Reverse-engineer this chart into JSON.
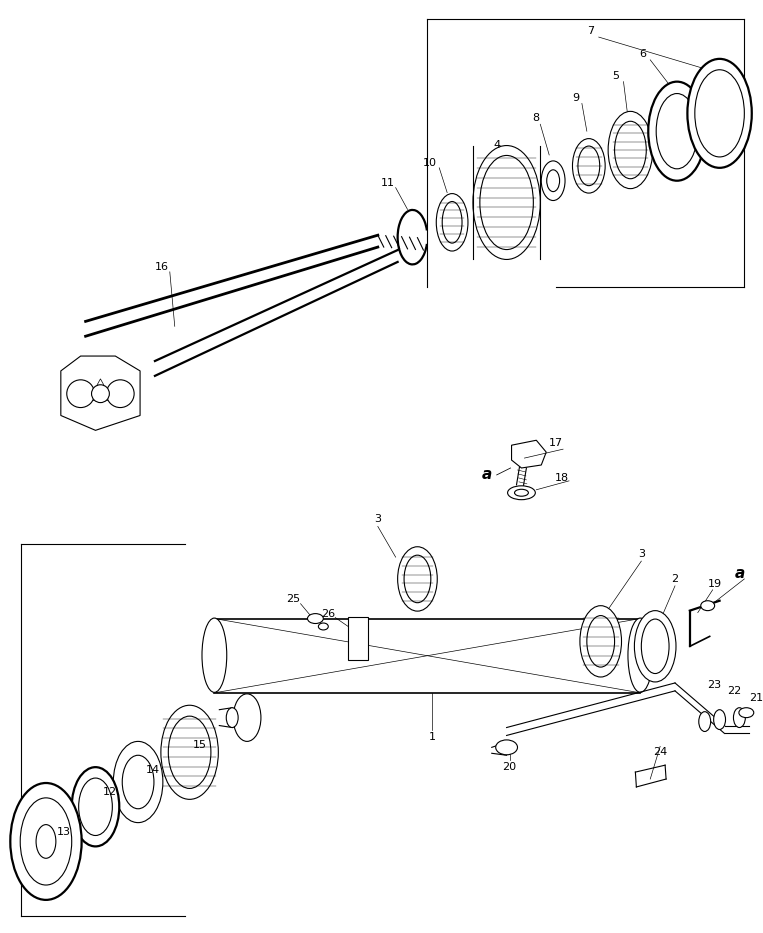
{
  "bg_color": "#ffffff",
  "line_color": "#000000",
  "fig_width": 7.63,
  "fig_height": 9.33,
  "dpi": 100
}
